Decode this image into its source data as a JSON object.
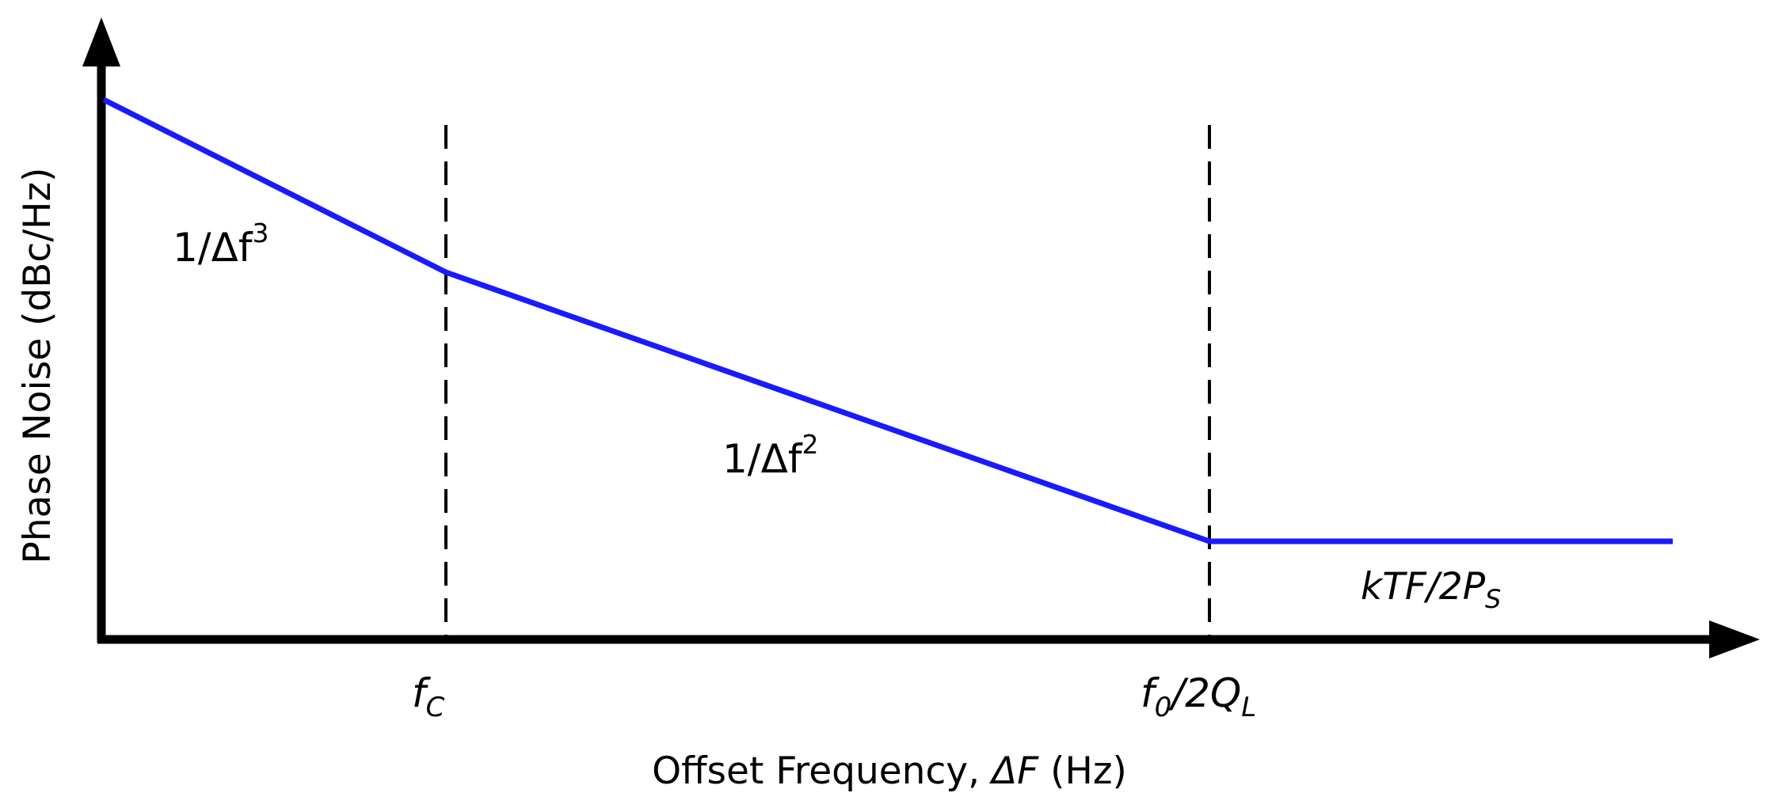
{
  "y_axis_label": "Phase Noise (dBc/Hz)",
  "x_axis_label": {
    "prefix": "Offset Frequency, ",
    "symbol": "ΔF",
    "suffix": " (Hz)"
  },
  "x_ticks": {
    "corner": {
      "base": "f",
      "sub": "C"
    },
    "resonator": {
      "base": "f",
      "base_sub": "0",
      "middle": "/2Q",
      "sub": "L"
    }
  },
  "regions": {
    "flicker": {
      "base": "1/Δf",
      "sup": "3"
    },
    "thermal": {
      "base": "1/Δf",
      "sup": "2"
    },
    "floor": {
      "base": "kTF/2P",
      "sub": "S"
    }
  },
  "colors": {
    "curve": "#1a1aff",
    "axis": "#000000",
    "guides": "#000000"
  }
}
